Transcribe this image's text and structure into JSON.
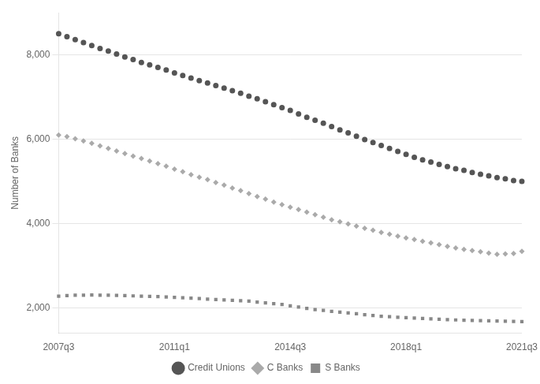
{
  "chart_data": {
    "type": "scatter",
    "ylabel": "Number of Banks",
    "categories": [
      "2007q3",
      null,
      null,
      null,
      null,
      null,
      null,
      null,
      null,
      null,
      null,
      null,
      null,
      null,
      "2011q1",
      null,
      null,
      null,
      null,
      null,
      null,
      null,
      null,
      null,
      null,
      null,
      null,
      null,
      "2014q3",
      null,
      null,
      null,
      null,
      null,
      null,
      null,
      null,
      null,
      null,
      null,
      null,
      null,
      "2018q1",
      null,
      null,
      null,
      null,
      null,
      null,
      null,
      null,
      null,
      null,
      null,
      null,
      null,
      "2021q3"
    ],
    "series": [
      {
        "name": "Credit Unions",
        "color": "#555555",
        "marker": "circle",
        "values": [
          8500,
          8430,
          8360,
          8290,
          8220,
          8150,
          8090,
          8020,
          7950,
          7890,
          7820,
          7760,
          7700,
          7640,
          7570,
          7510,
          7450,
          7390,
          7330,
          7270,
          7210,
          7150,
          7090,
          7020,
          6960,
          6890,
          6820,
          6750,
          6680,
          6600,
          6520,
          6450,
          6380,
          6300,
          6220,
          6150,
          6070,
          5990,
          5920,
          5850,
          5780,
          5710,
          5640,
          5570,
          5510,
          5460,
          5400,
          5350,
          5300,
          5260,
          5210,
          5170,
          5130,
          5090,
          5060,
          5020,
          5000
        ]
      },
      {
        "name": "C Banks",
        "color": "#aaaaaa",
        "marker": "diamond",
        "values": [
          6100,
          6060,
          6010,
          5960,
          5900,
          5840,
          5780,
          5720,
          5660,
          5600,
          5540,
          5480,
          5420,
          5360,
          5290,
          5230,
          5160,
          5100,
          5040,
          4970,
          4910,
          4840,
          4780,
          4710,
          4640,
          4580,
          4510,
          4450,
          4390,
          4330,
          4270,
          4210,
          4150,
          4090,
          4040,
          3990,
          3940,
          3890,
          3840,
          3790,
          3750,
          3700,
          3660,
          3620,
          3580,
          3540,
          3500,
          3460,
          3420,
          3390,
          3360,
          3330,
          3300,
          3270,
          3280,
          3290,
          3340
        ]
      },
      {
        "name": "S Banks",
        "color": "#888888",
        "marker": "square",
        "values": [
          2280,
          2290,
          2300,
          2300,
          2305,
          2300,
          2300,
          2295,
          2290,
          2285,
          2280,
          2275,
          2270,
          2260,
          2250,
          2240,
          2230,
          2220,
          2210,
          2200,
          2190,
          2180,
          2170,
          2160,
          2140,
          2120,
          2100,
          2080,
          2050,
          2020,
          1990,
          1960,
          1940,
          1920,
          1900,
          1880,
          1860,
          1840,
          1820,
          1800,
          1790,
          1780,
          1770,
          1760,
          1750,
          1740,
          1730,
          1720,
          1715,
          1710,
          1705,
          1700,
          1695,
          1690,
          1685,
          1680,
          1675
        ]
      }
    ],
    "ylim": [
      1400,
      9000
    ],
    "yticks": [
      {
        "value": 2000,
        "label": "2,000"
      },
      {
        "value": 4000,
        "label": "4,000"
      },
      {
        "value": 6000,
        "label": "6,000"
      },
      {
        "value": 8000,
        "label": "8,000"
      }
    ],
    "grid": true,
    "legend": "bottom"
  }
}
